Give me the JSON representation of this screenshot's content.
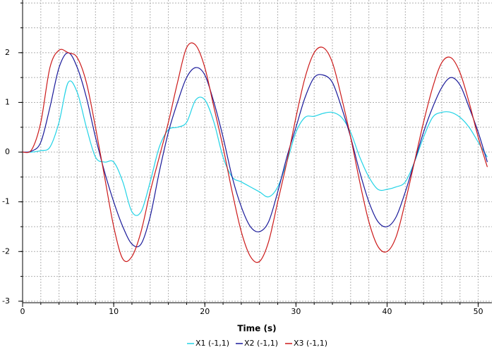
{
  "chart_data": {
    "type": "line",
    "x_label": "Time (s)",
    "x": [
      0,
      1,
      2,
      3,
      4,
      5,
      6,
      7,
      8,
      9,
      10,
      11,
      12,
      13,
      14,
      15,
      16,
      17,
      18,
      19,
      20,
      21,
      22,
      23,
      24,
      25,
      26,
      27,
      28,
      29,
      30,
      31,
      32,
      33,
      34,
      35,
      36,
      37,
      38,
      39,
      40,
      41,
      42,
      43,
      44,
      45,
      46,
      47,
      48,
      49,
      50,
      51
    ],
    "series": [
      {
        "name": "X1 (-1,1)",
        "color": "#22d3e6",
        "values": [
          0,
          0,
          0.03,
          0.1,
          0.6,
          1.4,
          1.2,
          0.5,
          -0.1,
          -0.2,
          -0.2,
          -0.6,
          -1.2,
          -1.2,
          -0.6,
          0.1,
          0.45,
          0.5,
          0.6,
          1.05,
          1.05,
          0.6,
          -0.1,
          -0.5,
          -0.6,
          -0.7,
          -0.8,
          -0.9,
          -0.7,
          -0.2,
          0.4,
          0.7,
          0.72,
          0.78,
          0.8,
          0.7,
          0.4,
          -0.1,
          -0.5,
          -0.75,
          -0.75,
          -0.7,
          -0.6,
          -0.2,
          0.3,
          0.7,
          0.8,
          0.8,
          0.7,
          0.5,
          0.2,
          -0.1
        ]
      },
      {
        "name": "X2 (-1,1)",
        "color": "#1a1a9a",
        "values": [
          0,
          0.02,
          0.2,
          0.9,
          1.7,
          2.0,
          1.7,
          1.1,
          0.3,
          -0.4,
          -1.0,
          -1.5,
          -1.85,
          -1.85,
          -1.3,
          -0.4,
          0.4,
          1.0,
          1.5,
          1.7,
          1.55,
          1.0,
          0.3,
          -0.5,
          -1.1,
          -1.5,
          -1.6,
          -1.4,
          -0.8,
          -0.1,
          0.5,
          1.1,
          1.5,
          1.55,
          1.4,
          0.9,
          0.3,
          -0.4,
          -1.0,
          -1.4,
          -1.5,
          -1.3,
          -0.8,
          -0.2,
          0.4,
          0.9,
          1.3,
          1.5,
          1.35,
          0.9,
          0.4,
          -0.2
        ]
      },
      {
        "name": "X3 (-1,1)",
        "color": "#cc1a1a",
        "values": [
          0,
          0.05,
          0.6,
          1.7,
          2.05,
          2.0,
          1.9,
          1.4,
          0.5,
          -0.5,
          -1.5,
          -2.15,
          -2.1,
          -1.6,
          -0.8,
          -0.1,
          0.6,
          1.4,
          2.1,
          2.15,
          1.7,
          0.9,
          0.1,
          -0.8,
          -1.6,
          -2.1,
          -2.2,
          -1.8,
          -1.0,
          -0.2,
          0.7,
          1.5,
          2.0,
          2.1,
          1.8,
          1.1,
          0.3,
          -0.6,
          -1.4,
          -1.9,
          -2.0,
          -1.7,
          -1.0,
          -0.2,
          0.6,
          1.3,
          1.8,
          1.9,
          1.6,
          1.0,
          0.3,
          -0.3
        ]
      }
    ],
    "xlim": [
      0,
      51.5
    ],
    "ylim": [
      -3.03,
      3.06
    ],
    "xticks": [
      0,
      10,
      20,
      30,
      40,
      50
    ],
    "yticks": [
      -3,
      -2,
      -1,
      0,
      1,
      2
    ],
    "xminorticks": [
      0,
      2,
      4,
      6,
      8,
      10,
      12,
      14,
      16,
      18,
      20,
      22,
      24,
      26,
      28,
      30,
      32,
      34,
      36,
      38,
      40,
      42,
      44,
      46,
      48,
      50
    ],
    "yminorticks": [
      -3,
      -2.5,
      -2,
      -1.5,
      -1,
      -0.5,
      0,
      0.5,
      1,
      1.5,
      2,
      2.5,
      3
    ],
    "grid": true,
    "legend": "bottom"
  }
}
